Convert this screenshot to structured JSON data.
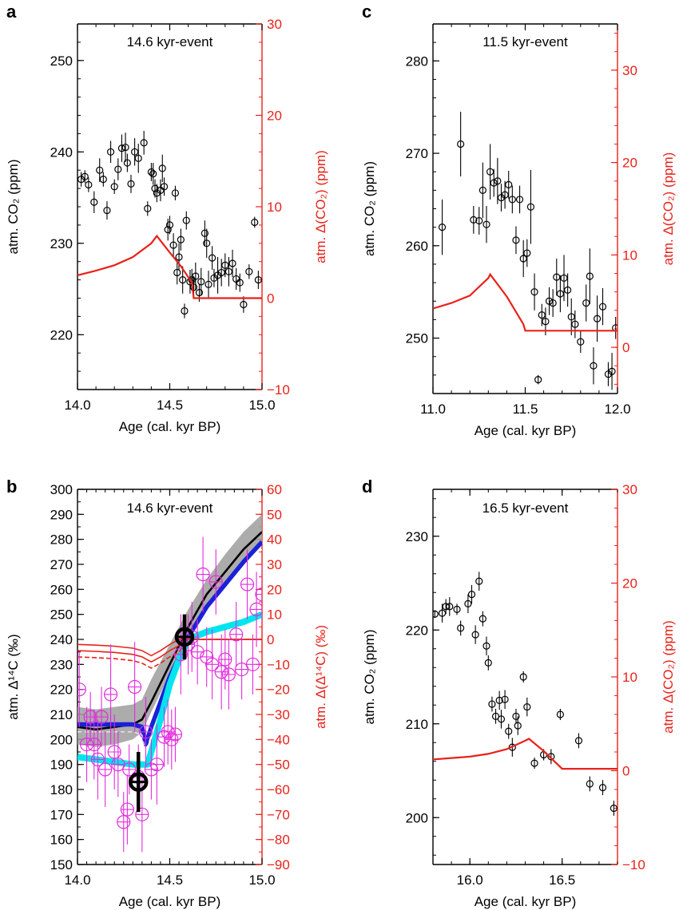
{
  "colors": {
    "left_axis": "#000000",
    "right_axis": "#e8221a",
    "model": "#e8221a",
    "data": "#000000",
    "c14_data": "#e22cde",
    "band": "#9e9e9e",
    "black_line": "#000000",
    "blue_line": "#1a21d9",
    "cyan_line": "#00e5ee"
  },
  "chart_data": [
    {
      "panel": "a",
      "type": "scatter",
      "annotation": "14.6 kyr-event",
      "xlabel": "Age (cal. kyr BP)",
      "ylabel": "atm. CO₂ (ppm)",
      "y2label": "atm. Δ(CO₂) (ppm)",
      "xlim": [
        14.0,
        15.0
      ],
      "ylim": [
        214,
        254
      ],
      "y2lim": [
        -10,
        30
      ],
      "xticks": [
        "14.0",
        "14.5",
        "15.0"
      ],
      "yticks": [
        "220",
        "230",
        "240",
        "250"
      ],
      "y2ticks": [
        "−10",
        "0",
        "10",
        "20",
        "30"
      ],
      "series": [
        {
          "kind": "points",
          "axis": "left",
          "x": [
            14.02,
            14.04,
            14.06,
            14.09,
            14.12,
            14.14,
            14.16,
            14.18,
            14.2,
            14.22,
            14.24,
            14.26,
            14.27,
            14.29,
            14.31,
            14.33,
            14.36,
            14.38,
            14.4,
            14.41,
            14.42,
            14.43,
            14.45,
            14.46,
            14.47,
            14.49,
            14.5,
            14.52,
            14.53,
            14.54,
            14.55,
            14.56,
            14.57,
            14.58,
            14.59,
            14.61,
            14.62,
            14.63,
            14.64,
            14.66,
            14.67,
            14.69,
            14.7,
            14.71,
            14.73,
            14.74,
            14.76,
            14.78,
            14.8,
            14.82,
            14.84,
            14.86,
            14.88,
            14.9,
            14.93,
            14.96,
            14.98
          ],
          "y": [
            237,
            237.3,
            236.4,
            234.5,
            238,
            237,
            233.6,
            240,
            236.2,
            238.1,
            240.4,
            240.5,
            238.8,
            236.5,
            240,
            239.3,
            241,
            233.8,
            237.8,
            237.6,
            236,
            235.5,
            235.8,
            238.2,
            236.2,
            231.5,
            232,
            229.8,
            235.5,
            226.8,
            228.5,
            230.4,
            226,
            222.6,
            232.5,
            225.8,
            226,
            225.2,
            226.4,
            224.6,
            225.8,
            231.1,
            230,
            225.5,
            228.4,
            226.2,
            226.5,
            226.8,
            227.6,
            226.9,
            227.8,
            226.1,
            225.7,
            223.3,
            226.9,
            232.3,
            226
          ],
          "err": [
            0.8,
            0.7,
            0.8,
            1.2,
            1.3,
            0.8,
            1,
            1.2,
            0.8,
            1.2,
            1.5,
            1.6,
            1,
            1,
            1.5,
            1.6,
            1.3,
            0.8,
            1,
            1.2,
            1,
            1,
            1.2,
            1.5,
            1,
            1.2,
            1,
            1.3,
            0.8,
            1.3,
            1.5,
            1.2,
            1.5,
            0.8,
            1,
            1.3,
            1.2,
            1.2,
            1.5,
            1,
            1.5,
            1.4,
            1.6,
            1.5,
            1.3,
            1,
            2,
            1.5,
            1.3,
            1.6,
            1.5,
            1.2,
            1,
            0.9,
            0.8,
            0.6,
            1
          ]
        },
        {
          "kind": "line",
          "axis": "right",
          "x": [
            14.0,
            14.1,
            14.2,
            14.3,
            14.4,
            14.43,
            14.5,
            14.56,
            14.62,
            14.63,
            15.0
          ],
          "y": [
            2.5,
            3,
            3.6,
            4.5,
            6,
            6.8,
            5,
            3.5,
            1.7,
            0,
            0
          ]
        }
      ]
    },
    {
      "panel": "b",
      "type": "line",
      "annotation": "14.6 kyr-event",
      "xlabel": "Age (cal. kyr BP)",
      "ylabel": "atm. Δ¹⁴C (‰)",
      "y2label": "atm. Δ(Δ¹⁴C) (‰)",
      "xlim": [
        14.0,
        15.0
      ],
      "ylim": [
        150,
        300
      ],
      "y2lim": [
        -90,
        60
      ],
      "xticks": [
        "14.0",
        "14.5",
        "15.0"
      ],
      "yticks": [
        "150",
        "160",
        "170",
        "180",
        "190",
        "200",
        "210",
        "220",
        "230",
        "240",
        "250",
        "260",
        "270",
        "280",
        "290",
        "300"
      ],
      "y2ticks": [
        "−90",
        "−80",
        "−70",
        "−60",
        "−50",
        "−40",
        "−30",
        "−20",
        "−10",
        "0",
        "10",
        "20",
        "30",
        "40",
        "50",
        "60"
      ],
      "series": [
        {
          "kind": "band",
          "axis": "left",
          "x": [
            14.0,
            14.1,
            14.2,
            14.3,
            14.35,
            14.4,
            14.5,
            14.6,
            14.7,
            14.8,
            14.9,
            15.0
          ],
          "lower": [
            198,
            197,
            198,
            200,
            203,
            211,
            226,
            241,
            252,
            262,
            272,
            279
          ],
          "upper": [
            213,
            212,
            213,
            214,
            216,
            224,
            238,
            252,
            264,
            274,
            283,
            290
          ]
        },
        {
          "kind": "line",
          "axis": "left",
          "name_key": "black",
          "x": [
            14.0,
            14.1,
            14.2,
            14.3,
            14.35,
            14.4,
            14.5,
            14.6,
            14.7,
            14.8,
            14.9,
            15.0
          ],
          "y": [
            205,
            204,
            205,
            206,
            208,
            215,
            230,
            245,
            258,
            267,
            276,
            283
          ]
        },
        {
          "kind": "line",
          "axis": "left",
          "name_key": "blue",
          "x": [
            14.0,
            14.1,
            14.2,
            14.3,
            14.35,
            14.37,
            14.4,
            14.5,
            14.6,
            14.7,
            14.8,
            14.9,
            15.0
          ],
          "y": [
            206,
            206,
            206,
            206,
            205,
            198,
            205,
            225,
            241,
            253,
            262,
            271,
            279
          ]
        },
        {
          "kind": "line",
          "axis": "left",
          "name_key": "cyan",
          "x": [
            14.0,
            14.1,
            14.2,
            14.3,
            14.35,
            14.38,
            14.45,
            14.5,
            14.55,
            14.6,
            14.7,
            14.8,
            14.9,
            15.0
          ],
          "y": [
            193,
            192,
            191,
            190,
            190,
            190,
            208,
            222,
            232,
            240,
            243,
            245,
            247,
            250
          ]
        },
        {
          "kind": "line",
          "axis": "right",
          "name_key": "red",
          "x": [
            14.0,
            14.1,
            14.2,
            14.3,
            14.35,
            14.4,
            14.45,
            14.5,
            14.55,
            14.6,
            15.0
          ],
          "y": [
            -4.5,
            -4.8,
            -5.2,
            -6,
            -7,
            -9,
            -7,
            -4.5,
            -2.5,
            0,
            0
          ]
        },
        {
          "kind": "points",
          "axis": "left",
          "name_key": "magenta",
          "x": [
            14.01,
            14.05,
            14.07,
            14.09,
            14.11,
            14.13,
            14.15,
            14.18,
            14.2,
            14.22,
            14.25,
            14.27,
            14.28,
            14.31,
            14.33,
            14.35,
            14.37,
            14.4,
            14.43,
            14.47,
            14.49,
            14.51,
            14.53,
            14.56,
            14.6,
            14.62,
            14.65,
            14.68,
            14.7,
            14.73,
            14.75,
            14.78,
            14.8,
            14.82,
            14.86,
            14.89,
            14.92,
            14.95,
            14.97,
            15.0
          ],
          "y": [
            220,
            198,
            209,
            198,
            192,
            209,
            188,
            218,
            195,
            190,
            167,
            172,
            188,
            221,
            185,
            170,
            203,
            188,
            190,
            201,
            203,
            200,
            202,
            234,
            238,
            241,
            235,
            266,
            233,
            230,
            263,
            227,
            232,
            226,
            242,
            228,
            262,
            230,
            252,
            258
          ],
          "err": [
            15,
            15,
            10,
            14,
            16,
            12,
            15,
            20,
            15,
            13,
            12,
            14,
            10,
            18,
            13,
            15,
            14,
            12,
            16,
            12,
            13,
            12,
            11,
            16,
            12,
            14,
            13,
            15,
            12,
            14,
            13,
            15,
            12,
            14,
            13,
            12,
            14,
            12,
            15,
            12
          ]
        },
        {
          "kind": "point",
          "axis": "left",
          "name_key": "big1",
          "x": [
            14.33
          ],
          "y": [
            183
          ],
          "err": [
            12
          ]
        },
        {
          "kind": "point",
          "axis": "left",
          "name_key": "big2",
          "x": [
            14.58
          ],
          "y": [
            241
          ],
          "err": [
            9
          ]
        }
      ]
    },
    {
      "panel": "c",
      "type": "scatter",
      "annotation": "11.5 kyr-event",
      "xlabel": "Age (cal. kyr BP)",
      "ylabel": "atm. CO₂ (ppm)",
      "y2label": "atm. Δ(CO₂) (ppm)",
      "xlim": [
        11.0,
        12.0
      ],
      "ylim": [
        244,
        284
      ],
      "y2lim": [
        -5,
        35
      ],
      "xticks": [
        "11.0",
        "11.5",
        "12.0"
      ],
      "yticks": [
        "250",
        "260",
        "270",
        "280"
      ],
      "y2ticks": [
        "0",
        "10",
        "20",
        "30"
      ],
      "series": [
        {
          "kind": "points",
          "axis": "left",
          "x": [
            11.05,
            11.15,
            11.22,
            11.25,
            11.27,
            11.29,
            11.31,
            11.33,
            11.35,
            11.37,
            11.39,
            11.41,
            11.43,
            11.45,
            11.47,
            11.49,
            11.51,
            11.53,
            11.55,
            11.57,
            11.59,
            11.61,
            11.63,
            11.65,
            11.67,
            11.69,
            11.71,
            11.73,
            11.75,
            11.77,
            11.8,
            11.83,
            11.85,
            11.87,
            11.89,
            11.92,
            11.95,
            11.97,
            11.99
          ],
          "y": [
            262,
            271,
            262.8,
            262.7,
            266,
            262.3,
            268,
            266.8,
            267,
            265.2,
            265.5,
            266.6,
            265,
            260.6,
            265,
            258.6,
            259.2,
            264.2,
            255,
            245.5,
            252.5,
            251.8,
            254.0,
            253.8,
            256.6,
            254.8,
            256.5,
            255.2,
            252.3,
            251.5,
            249.6,
            253.8,
            256.7,
            247,
            252.1,
            253.4,
            246.1,
            246.4,
            251.1
          ],
          "err": [
            3,
            3.5,
            1.5,
            1.5,
            3,
            2,
            3,
            1.5,
            2.5,
            1.5,
            1.5,
            1.5,
            1.5,
            1.5,
            1.5,
            2,
            1.5,
            4,
            2,
            0.5,
            1.2,
            1.5,
            1.5,
            1.5,
            2,
            2,
            2.5,
            1.8,
            2,
            1.5,
            1.2,
            2,
            3,
            2,
            2.5,
            2,
            1.3,
            2,
            1.2
          ]
        },
        {
          "kind": "line",
          "axis": "right",
          "x": [
            11.0,
            11.1,
            11.2,
            11.3,
            11.31,
            11.4,
            11.49,
            11.5,
            12.0
          ],
          "y": [
            4.2,
            4.8,
            5.6,
            7.5,
            7.9,
            5.5,
            2.5,
            1.8,
            1.8
          ]
        }
      ]
    },
    {
      "panel": "d",
      "type": "scatter",
      "annotation": "16.5 kyr-event",
      "xlabel": "Age (cal. kyr BP)",
      "ylabel": "atm. CO₂ (ppm)",
      "y2label": "atm. Δ(CO₂) (ppm)",
      "xlim": [
        15.8,
        16.8
      ],
      "ylim": [
        195,
        235
      ],
      "y2lim": [
        -10,
        30
      ],
      "xticks": [
        "16.0",
        "16.5"
      ],
      "yticks": [
        "200",
        "210",
        "220",
        "230"
      ],
      "y2ticks": [
        "−10",
        "0",
        "10",
        "20",
        "30"
      ],
      "series": [
        {
          "kind": "points",
          "axis": "left",
          "x": [
            15.81,
            15.85,
            15.87,
            15.89,
            15.93,
            15.95,
            15.99,
            16.01,
            16.03,
            16.05,
            16.07,
            16.09,
            16.1,
            16.12,
            16.14,
            16.16,
            16.17,
            16.19,
            16.21,
            16.23,
            16.25,
            16.26,
            16.29,
            16.31,
            16.35,
            16.4,
            16.44,
            16.49,
            16.59,
            16.65,
            16.72,
            16.78
          ],
          "y": [
            221.7,
            221.8,
            222.5,
            222.5,
            222.2,
            220.2,
            222.8,
            223.8,
            219.5,
            225.2,
            221.2,
            218.3,
            216.5,
            212.1,
            210.8,
            212.5,
            210.5,
            212.6,
            209.2,
            207.5,
            210.8,
            209.8,
            215,
            211.8,
            205.8,
            206.7,
            206.5,
            211,
            208.2,
            203.6,
            203.2,
            201
          ],
          "err": [
            0.4,
            1,
            0.8,
            1,
            0.6,
            0.8,
            1,
            1,
            1,
            1,
            0.8,
            1,
            0.8,
            0.8,
            0.8,
            1,
            1,
            1,
            0.8,
            1,
            0.8,
            1,
            0.6,
            1,
            0.6,
            0.6,
            0.8,
            0.6,
            0.8,
            0.8,
            0.8,
            0.8
          ]
        },
        {
          "kind": "line",
          "axis": "right",
          "x": [
            15.8,
            16.0,
            16.1,
            16.2,
            16.3,
            16.32,
            16.4,
            16.5,
            16.8
          ],
          "y": [
            1.2,
            1.5,
            1.8,
            2.3,
            3.2,
            3.4,
            2.1,
            0.2,
            0.2
          ]
        }
      ]
    }
  ],
  "panel_labels": [
    "a",
    "b",
    "c",
    "d"
  ]
}
